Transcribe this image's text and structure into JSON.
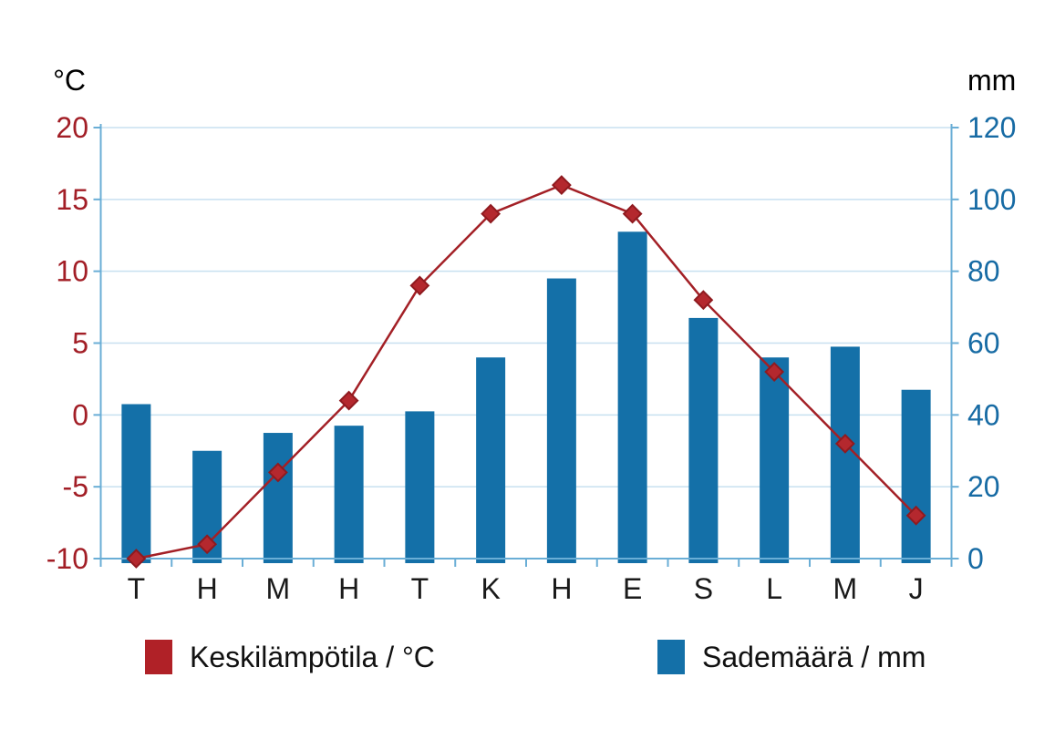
{
  "chart_data": {
    "type": "bar",
    "subtype": "combo-bar-line-climograph",
    "categories": [
      "T",
      "H",
      "M",
      "H",
      "T",
      "K",
      "H",
      "E",
      "S",
      "L",
      "M",
      "J"
    ],
    "series": [
      {
        "name": "Keskilämpötila / °C",
        "type": "line",
        "axis": "left",
        "marker": "diamond",
        "values": [
          -10,
          -9,
          -4,
          1,
          9,
          14,
          16,
          14,
          8,
          3,
          -2,
          -7
        ]
      },
      {
        "name": "Sademäärä / mm",
        "type": "bar",
        "axis": "right",
        "values": [
          43,
          30,
          35,
          37,
          41,
          56,
          78,
          91,
          67,
          56,
          59,
          47
        ]
      }
    ],
    "left_axis": {
      "label": "°C",
      "min": -10,
      "max": 20,
      "ticks": [
        20,
        15,
        10,
        5,
        0,
        -5,
        -10
      ]
    },
    "right_axis": {
      "label": "mm",
      "min": 0,
      "max": 120,
      "ticks": [
        120,
        100,
        80,
        60,
        40,
        20,
        0
      ]
    },
    "grid": "horizontal-on",
    "legend_position": "bottom"
  },
  "legend": {
    "items": [
      {
        "label": "Keskilämpötila / °C",
        "color": "#b02127"
      },
      {
        "label": "Sademäärä / mm",
        "color": "#1470a8"
      }
    ]
  },
  "colors": {
    "background": "#ffffff",
    "bar_blue": "#1470a8",
    "line_red": "#a32026",
    "marker_fill": "#b4282e",
    "marker_stroke": "#8f1a1f",
    "left_tick_text": "#a21e26",
    "right_tick_text": "#176ba4",
    "month_text": "#1a1a1a",
    "axis_line": "#6aaed6",
    "grid_line": "#c8e0f0"
  }
}
